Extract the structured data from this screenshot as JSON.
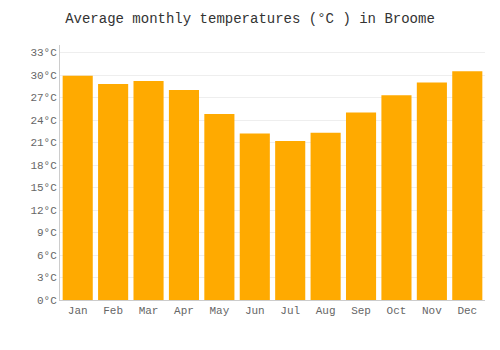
{
  "chart_data": {
    "type": "bar",
    "title": "Average monthly temperatures (°C ) in Broome",
    "categories": [
      "Jan",
      "Feb",
      "Mar",
      "Apr",
      "May",
      "Jun",
      "Jul",
      "Aug",
      "Sep",
      "Oct",
      "Nov",
      "Dec"
    ],
    "values": [
      29.9,
      28.8,
      29.2,
      28.0,
      24.8,
      22.2,
      21.2,
      22.3,
      25.0,
      27.3,
      29.0,
      30.5
    ],
    "color": "#FFAA00",
    "ylim": [
      0,
      34
    ],
    "yticks": [
      {
        "value": 0,
        "label": "0°C"
      },
      {
        "value": 3,
        "label": "3°C"
      },
      {
        "value": 6,
        "label": "6°C"
      },
      {
        "value": 9,
        "label": "9°C"
      },
      {
        "value": 12,
        "label": "12°C"
      },
      {
        "value": 15,
        "label": "15°C"
      },
      {
        "value": 18,
        "label": "18°C"
      },
      {
        "value": 21,
        "label": "21°C"
      },
      {
        "value": 24,
        "label": "24°C"
      },
      {
        "value": 27,
        "label": "27°C"
      },
      {
        "value": 30,
        "label": "30°C"
      },
      {
        "value": 33,
        "label": "33°C"
      }
    ],
    "grid": true
  }
}
